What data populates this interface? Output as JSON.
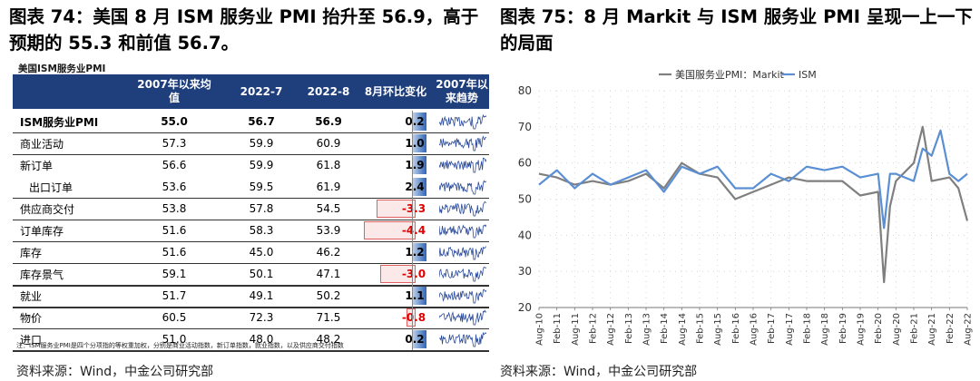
{
  "left_figure": {
    "heading": "图表 74：美国 8 月 ISM 服务业 PMI 抬升至 56.9，高于预期的 55.3 和前值 56.7。",
    "table_title": "美国ISM服务业PMI",
    "columns": [
      "",
      "2007年以来均值",
      "2022-7",
      "2022-8",
      "8月环比变化",
      "2007年以来趋势"
    ],
    "rows": [
      {
        "name": "ISM服务业PMI",
        "avg": "55.0",
        "jul": "56.7",
        "aug": "56.9",
        "chg": "0.2",
        "chg_value": 0.2,
        "bold": true,
        "sub": false
      },
      {
        "name": "商业活动",
        "avg": "57.3",
        "jul": "59.9",
        "aug": "60.9",
        "chg": "1.0",
        "chg_value": 1.0,
        "bold": false,
        "sub": false
      },
      {
        "name": "新订单",
        "avg": "56.6",
        "jul": "59.9",
        "aug": "61.8",
        "chg": "1.9",
        "chg_value": 1.9,
        "bold": false,
        "sub": false
      },
      {
        "name": "出口订单",
        "avg": "53.6",
        "jul": "59.5",
        "aug": "61.9",
        "chg": "2.4",
        "chg_value": 2.4,
        "bold": false,
        "sub": true
      },
      {
        "name": "供应商交付",
        "avg": "53.8",
        "jul": "57.8",
        "aug": "54.5",
        "chg": "-3.3",
        "chg_value": -3.3,
        "bold": false,
        "sub": false
      },
      {
        "name": "订单库存",
        "avg": "51.6",
        "jul": "58.3",
        "aug": "53.9",
        "chg": "-4.4",
        "chg_value": -4.4,
        "bold": false,
        "sub": false
      },
      {
        "name": "库存",
        "avg": "51.6",
        "jul": "45.0",
        "aug": "46.2",
        "chg": "1.2",
        "chg_value": 1.2,
        "bold": false,
        "sub": false
      },
      {
        "name": "库存景气",
        "avg": "59.1",
        "jul": "50.1",
        "aug": "47.1",
        "chg": "-3.0",
        "chg_value": -3.0,
        "bold": false,
        "sub": false
      },
      {
        "name": "就业",
        "avg": "51.7",
        "jul": "49.1",
        "aug": "50.2",
        "chg": "1.1",
        "chg_value": 1.1,
        "bold": false,
        "sub": false
      },
      {
        "name": "物价",
        "avg": "60.5",
        "jul": "72.3",
        "aug": "71.5",
        "chg": "-0.8",
        "chg_value": -0.8,
        "bold": false,
        "sub": false
      },
      {
        "name": "进口",
        "avg": "51.0",
        "jul": "48.0",
        "aug": "48.2",
        "chg": "0.2",
        "chg_value": 0.2,
        "bold": false,
        "sub": false
      }
    ],
    "footnote": "注：ISM服务业PMI是四个分项指的等权重加权，分别是商业活动指数，新订单指数，就业指数，以及供应商交付指数",
    "source": "资料来源：Wind，中金公司研究部",
    "colors": {
      "header_bg": "#1f3e7c",
      "positive_bar": "#2f64b4",
      "negative_text": "#e00000",
      "sparkline": "#2a4a9a"
    }
  },
  "right_figure": {
    "heading": "图表 75：8 月 Markit 与 ISM 服务业 PMI 呈现一上一下的局面",
    "source": "资料来源：Wind，中金公司研究部"
  },
  "chart_data": [
    {
      "type": "table",
      "title": "美国ISM服务业PMI",
      "columns": [
        "2007年以来均值",
        "2022-7",
        "2022-8",
        "8月环比变化"
      ],
      "rows": [
        "ISM服务业PMI",
        "商业活动",
        "新订单",
        "出口订单",
        "供应商交付",
        "订单库存",
        "库存",
        "库存景气",
        "就业",
        "物价",
        "进口"
      ],
      "values": [
        [
          55.0,
          56.7,
          56.9,
          0.2
        ],
        [
          57.3,
          59.9,
          60.9,
          1.0
        ],
        [
          56.6,
          59.9,
          61.8,
          1.9
        ],
        [
          53.6,
          59.5,
          61.9,
          2.4
        ],
        [
          53.8,
          57.8,
          54.5,
          -3.3
        ],
        [
          51.6,
          58.3,
          53.9,
          -4.4
        ],
        [
          51.6,
          45.0,
          46.2,
          1.2
        ],
        [
          59.1,
          50.1,
          47.1,
          -3.0
        ],
        [
          51.7,
          49.1,
          50.2,
          1.1
        ],
        [
          60.5,
          72.3,
          71.5,
          -0.8
        ],
        [
          51.0,
          48.0,
          48.2,
          0.2
        ]
      ]
    },
    {
      "type": "line",
      "title": "",
      "xlabel": "",
      "ylabel": "",
      "ylim": [
        20,
        80
      ],
      "yticks": [
        20,
        30,
        40,
        50,
        60,
        70,
        80
      ],
      "x_start": "Aug-10",
      "x_end": "Aug-22",
      "xticks": [
        "Aug-10",
        "Feb-11",
        "Aug-11",
        "Feb-12",
        "Aug-12",
        "Feb-13",
        "Aug-13",
        "Feb-14",
        "Aug-14",
        "Feb-15",
        "Aug-15",
        "Feb-16",
        "Aug-16",
        "Feb-17",
        "Aug-17",
        "Feb-18",
        "Aug-18",
        "Feb-19",
        "Aug-19",
        "Feb-20",
        "Aug-20",
        "Feb-21",
        "Aug-21",
        "Feb-22",
        "Aug-22"
      ],
      "grid": "dotted",
      "legend": "top",
      "series": [
        {
          "name": "美国服务业PMI：Markit",
          "color": "#7f7f7f",
          "x": [
            "Aug-10",
            "Feb-11",
            "Aug-11",
            "Feb-12",
            "Aug-12",
            "Feb-13",
            "Aug-13",
            "Feb-14",
            "Aug-14",
            "Feb-15",
            "Aug-15",
            "Feb-16",
            "Aug-16",
            "Feb-17",
            "Aug-17",
            "Feb-18",
            "Aug-18",
            "Feb-19",
            "Aug-19",
            "Feb-20",
            "Apr-20",
            "Jun-20",
            "Aug-20",
            "Feb-21",
            "May-21",
            "Aug-21",
            "Feb-22",
            "May-22",
            "Jul-22",
            "Aug-22"
          ],
          "values": [
            57,
            56,
            54,
            55,
            54,
            55,
            57,
            53,
            60,
            57,
            56,
            50,
            52,
            54,
            56,
            55,
            55,
            55,
            51,
            52,
            27,
            48,
            55,
            60,
            70,
            55,
            56,
            53,
            47,
            44
          ]
        },
        {
          "name": "ISM",
          "color": "#5b8fd4",
          "x": [
            "Aug-10",
            "Feb-11",
            "Aug-11",
            "Feb-12",
            "Aug-12",
            "Feb-13",
            "Aug-13",
            "Feb-14",
            "Aug-14",
            "Feb-15",
            "Aug-15",
            "Feb-16",
            "Aug-16",
            "Feb-17",
            "Aug-17",
            "Feb-18",
            "Aug-18",
            "Feb-19",
            "Aug-19",
            "Feb-20",
            "Apr-20",
            "Jun-20",
            "Aug-20",
            "Feb-21",
            "May-21",
            "Aug-21",
            "Nov-21",
            "Feb-22",
            "May-22",
            "Aug-22"
          ],
          "values": [
            54,
            58,
            53,
            57,
            54,
            56,
            58,
            52,
            59,
            57,
            59,
            53,
            53,
            57,
            55,
            59,
            58,
            59,
            56,
            57,
            42,
            57,
            57,
            55,
            64,
            62,
            69,
            57,
            55,
            57
          ]
        }
      ]
    }
  ]
}
